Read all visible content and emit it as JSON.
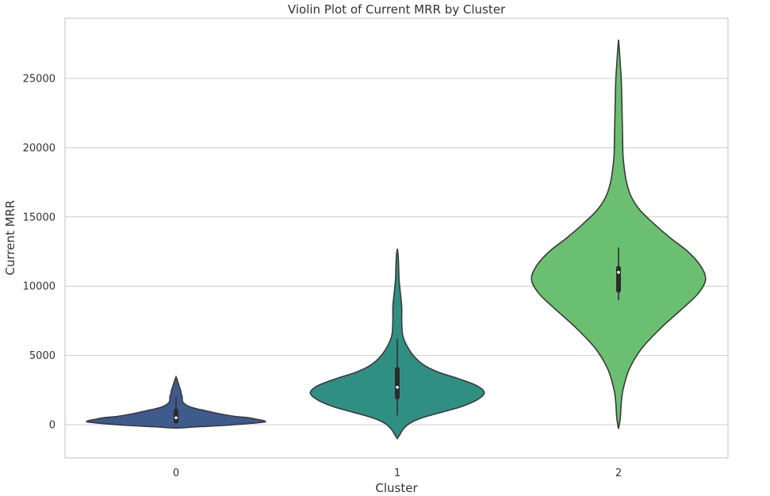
{
  "chart_data": {
    "type": "violin",
    "title": "Violin Plot of Current MRR by Cluster",
    "xlabel": "Cluster",
    "ylabel": "Current MRR",
    "categories": [
      "0",
      "1",
      "2"
    ],
    "ylim": [
      -2400,
      29000
    ],
    "yticks": [
      0,
      5000,
      10000,
      15000,
      20000,
      25000
    ],
    "ytick_labels": [
      "0",
      "5000",
      "10000",
      "15000",
      "20000",
      "25000"
    ],
    "grid": true,
    "colors": [
      "#3f5a8c",
      "#2f8f83",
      "#6ac070"
    ],
    "violins": [
      {
        "category": "0",
        "min": 150,
        "q1": 250,
        "median": 500,
        "q3": 1000,
        "max": 2000,
        "density": [
          [
            -250,
            0.0
          ],
          [
            -220,
            0.08
          ],
          [
            -150,
            0.25
          ],
          [
            -50,
            0.55
          ],
          [
            100,
            0.85
          ],
          [
            200,
            1.0
          ],
          [
            300,
            0.98
          ],
          [
            400,
            0.9
          ],
          [
            500,
            0.82
          ],
          [
            600,
            0.66
          ],
          [
            800,
            0.48
          ],
          [
            1000,
            0.34
          ],
          [
            1200,
            0.2
          ],
          [
            1400,
            0.12
          ],
          [
            1600,
            0.08
          ],
          [
            1800,
            0.07
          ],
          [
            2000,
            0.07
          ],
          [
            2200,
            0.06
          ],
          [
            2500,
            0.05
          ],
          [
            2800,
            0.035
          ],
          [
            3100,
            0.02
          ],
          [
            3300,
            0.01
          ],
          [
            3450,
            0.0
          ]
        ]
      },
      {
        "category": "1",
        "min": 650,
        "q1": 2000,
        "median": 2700,
        "q3": 4000,
        "max": 6200,
        "density": [
          [
            -1000,
            0.0
          ],
          [
            -700,
            0.03
          ],
          [
            -300,
            0.07
          ],
          [
            100,
            0.14
          ],
          [
            500,
            0.28
          ],
          [
            900,
            0.5
          ],
          [
            1300,
            0.72
          ],
          [
            1800,
            0.9
          ],
          [
            2300,
            0.98
          ],
          [
            2800,
            0.9
          ],
          [
            3300,
            0.7
          ],
          [
            3800,
            0.46
          ],
          [
            4300,
            0.3
          ],
          [
            5000,
            0.18
          ],
          [
            5800,
            0.1
          ],
          [
            6500,
            0.06
          ],
          [
            7500,
            0.05
          ],
          [
            8500,
            0.05
          ],
          [
            9500,
            0.035
          ],
          [
            10500,
            0.02
          ],
          [
            11500,
            0.015
          ],
          [
            12200,
            0.01
          ],
          [
            12700,
            0.0
          ]
        ]
      },
      {
        "category": "2",
        "min": 9000,
        "q1": 9700,
        "median": 11000,
        "q3": 11300,
        "max": 12800,
        "density": [
          [
            -300,
            0.0
          ],
          [
            500,
            0.02
          ],
          [
            1500,
            0.03
          ],
          [
            2500,
            0.05
          ],
          [
            4000,
            0.12
          ],
          [
            5500,
            0.26
          ],
          [
            7000,
            0.48
          ],
          [
            8500,
            0.74
          ],
          [
            9500,
            0.9
          ],
          [
            10500,
            0.98
          ],
          [
            11500,
            0.92
          ],
          [
            12500,
            0.78
          ],
          [
            13500,
            0.58
          ],
          [
            14500,
            0.4
          ],
          [
            15500,
            0.24
          ],
          [
            16500,
            0.14
          ],
          [
            17500,
            0.09
          ],
          [
            18500,
            0.065
          ],
          [
            19500,
            0.05
          ],
          [
            21000,
            0.045
          ],
          [
            22500,
            0.04
          ],
          [
            24000,
            0.035
          ],
          [
            25000,
            0.03
          ],
          [
            26000,
            0.02
          ],
          [
            27000,
            0.01
          ],
          [
            27800,
            0.0
          ]
        ]
      }
    ]
  }
}
